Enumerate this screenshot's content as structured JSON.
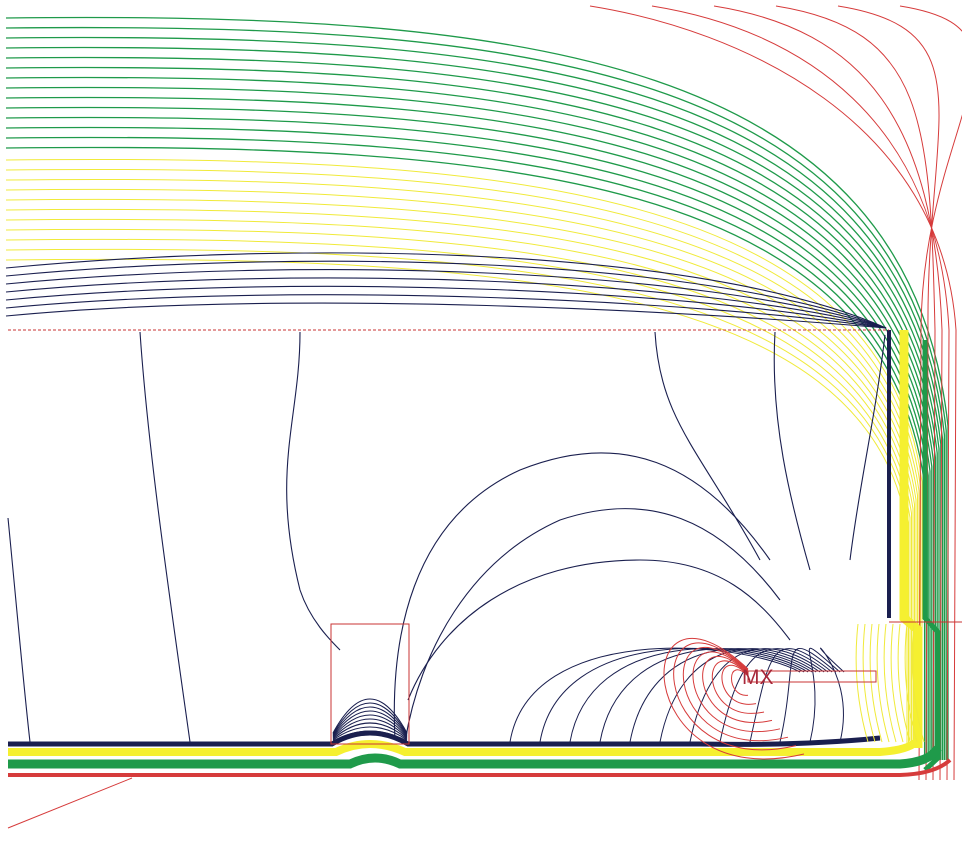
{
  "diagram": {
    "label_mx": "MX",
    "colors": {
      "background": "#ffffff",
      "navy": "#1a1f4f",
      "yellow": "#f0ea3a",
      "yellow_band": "#f5f030",
      "green": "#1f9a4a",
      "red": "#d63b3b",
      "outline": "#c93333",
      "label": "#a8283a"
    }
  }
}
